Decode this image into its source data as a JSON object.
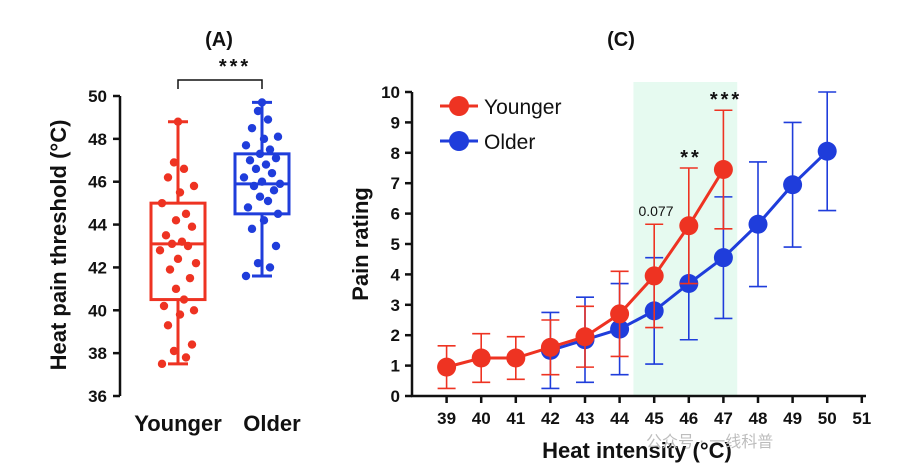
{
  "colors": {
    "younger": "#ee3322",
    "older": "#1f3ddb",
    "highlight": "#e6faf0",
    "axis": "#111111"
  },
  "watermark": "公众号 · 一线科普",
  "chart_data": [
    {
      "panel": "(A)",
      "type": "box",
      "ylabel": "Heat pain threshold (°C)",
      "ylim": [
        36,
        50
      ],
      "yticks": [
        36,
        38,
        40,
        42,
        44,
        46,
        48,
        50
      ],
      "ytick_labels": [
        "36",
        "38",
        "40",
        "42",
        "44",
        "46",
        "48",
        "50"
      ],
      "significance": "***",
      "groups": [
        {
          "name": "Younger",
          "color": "#ee3322",
          "min": 37.5,
          "q1": 40.5,
          "median": 43.1,
          "q3": 45.0,
          "max": 48.8,
          "points": [
            37.5,
            37.8,
            38.1,
            38.4,
            39.3,
            39.8,
            40.0,
            40.2,
            40.5,
            41.0,
            41.5,
            41.9,
            42.2,
            42.4,
            42.8,
            43.0,
            43.1,
            43.2,
            43.5,
            43.9,
            44.2,
            44.5,
            45.0,
            45.5,
            45.8,
            46.2,
            46.6,
            46.9,
            48.8
          ]
        },
        {
          "name": "Older",
          "color": "#1f3ddb",
          "min": 41.6,
          "q1": 44.5,
          "median": 45.9,
          "q3": 47.3,
          "max": 49.7,
          "points": [
            41.6,
            42.0,
            42.2,
            43.0,
            43.8,
            44.2,
            44.5,
            44.8,
            45.1,
            45.3,
            45.6,
            45.8,
            45.9,
            46.0,
            46.2,
            46.4,
            46.6,
            46.8,
            47.0,
            47.1,
            47.3,
            47.5,
            47.7,
            48.0,
            48.1,
            48.5,
            48.9,
            49.3,
            49.7
          ]
        }
      ]
    },
    {
      "panel": "(C)",
      "type": "line",
      "xlabel": "Heat intensity (°C)",
      "ylabel": "Pain rating",
      "xlim": [
        38,
        51
      ],
      "ylim": [
        0,
        10
      ],
      "xticks": [
        39,
        40,
        41,
        42,
        43,
        44,
        45,
        46,
        47,
        48,
        49,
        50,
        51
      ],
      "xtick_labels": [
        "39",
        "40",
        "41",
        "42",
        "43",
        "44",
        "45",
        "46",
        "47",
        "48",
        "49",
        "50",
        "51"
      ],
      "yticks": [
        0,
        1,
        2,
        3,
        4,
        5,
        6,
        7,
        8,
        9,
        10
      ],
      "ytick_labels": [
        "0",
        "1",
        "2",
        "3",
        "4",
        "5",
        "6",
        "7",
        "8",
        "9",
        "10"
      ],
      "highlight_range": [
        44.4,
        47.4
      ],
      "legend": {
        "placement": "top-left",
        "entries": [
          "Younger",
          "Older"
        ]
      },
      "series": [
        {
          "name": "Younger",
          "color": "#ee3322",
          "x": [
            39,
            40,
            41,
            42,
            43,
            44,
            45,
            46,
            47
          ],
          "y": [
            0.95,
            1.25,
            1.25,
            1.6,
            1.95,
            2.7,
            3.95,
            5.6,
            7.45
          ],
          "err": [
            0.7,
            0.8,
            0.7,
            0.9,
            1.0,
            1.4,
            1.7,
            1.9,
            1.95
          ]
        },
        {
          "name": "Older",
          "color": "#1f3ddb",
          "x": [
            42,
            43,
            44,
            45,
            46,
            47,
            48,
            49,
            50
          ],
          "y": [
            1.5,
            1.85,
            2.2,
            2.8,
            3.7,
            4.55,
            5.65,
            6.95,
            8.05
          ],
          "err": [
            1.25,
            1.4,
            1.5,
            1.75,
            1.85,
            2.0,
            2.05,
            2.05,
            1.95
          ]
        }
      ],
      "annotations": [
        {
          "x": 45,
          "y": 5.6,
          "text": "0.077"
        },
        {
          "x": 46,
          "y": 7.45,
          "text": "**"
        },
        {
          "x": 47,
          "y": 9.45,
          "text": "***"
        }
      ]
    }
  ]
}
